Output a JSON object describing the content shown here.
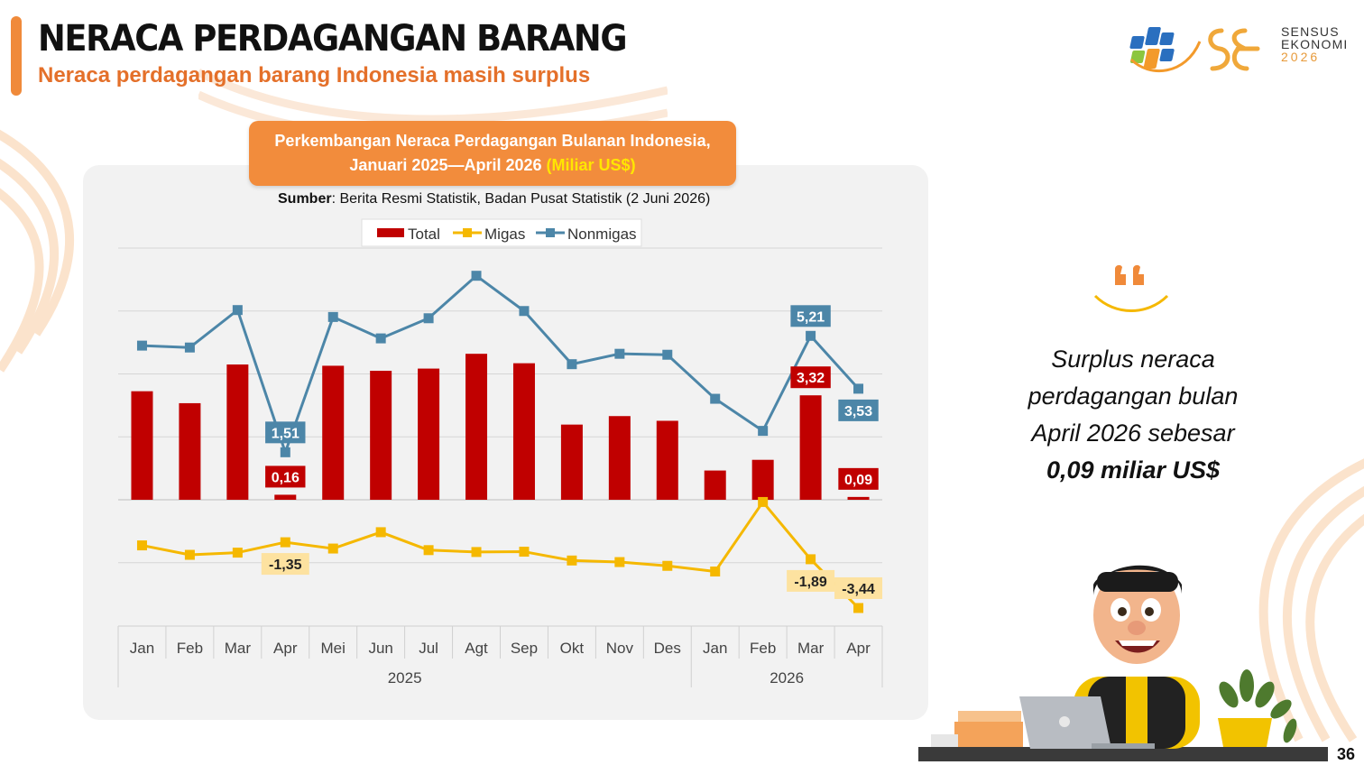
{
  "header": {
    "title": "NERACA PERDAGANGAN BARANG",
    "subtitle": "Neraca perdagangan barang Indonesia masih surplus"
  },
  "logo": {
    "line1": "SENSUS",
    "line2": "EKONOMI",
    "line3": "2026"
  },
  "chart_title": {
    "line1": "Perkembangan Neraca Perdagangan Bulanan Indonesia,",
    "line2": "Januari 2025—April 2026",
    "unit": "(Miliar US$)"
  },
  "source": {
    "label": "Sumber",
    "text": ": Berita Resmi Statistik, Badan Pusat Statistik (2 Juni 2026)"
  },
  "chart_data": {
    "type": "bar",
    "categories": [
      "Jan",
      "Feb",
      "Mar",
      "Apr",
      "Mei",
      "Jun",
      "Jul",
      "Agt",
      "Sep",
      "Okt",
      "Nov",
      "Des",
      "Jan",
      "Feb",
      "Mar",
      "Apr"
    ],
    "year_groups": [
      {
        "label": "2025",
        "count": 12
      },
      {
        "label": "2026",
        "count": 4
      }
    ],
    "legend": [
      "Total",
      "Migas",
      "Nonmigas"
    ],
    "series": [
      {
        "name": "Total",
        "type": "bar",
        "color": "#c00000",
        "values": [
          3.45,
          3.07,
          4.3,
          0.16,
          4.26,
          4.1,
          4.17,
          4.64,
          4.34,
          2.39,
          2.66,
          2.51,
          0.93,
          1.27,
          3.32,
          0.09
        ],
        "labels": {
          "3": "0,16",
          "14": "3,32",
          "15": "0,09"
        }
      },
      {
        "name": "Migas",
        "type": "line",
        "color": "#f5b800",
        "values": [
          -1.45,
          -1.75,
          -1.68,
          -1.35,
          -1.55,
          -1.03,
          -1.6,
          -1.66,
          -1.65,
          -1.93,
          -1.98,
          -2.1,
          -2.28,
          -0.07,
          -1.89,
          -3.44
        ],
        "labels": {
          "3": "-1,35",
          "14": "-1,89",
          "15": "-3,44"
        }
      },
      {
        "name": "Nonmigas",
        "type": "line",
        "color": "#4c86a8",
        "values": [
          4.9,
          4.84,
          6.03,
          1.51,
          5.81,
          5.13,
          5.77,
          7.12,
          6.0,
          4.31,
          4.64,
          4.61,
          3.21,
          2.19,
          5.21,
          3.53
        ],
        "labels": {
          "3": "1,51",
          "14": "5,21",
          "15": "3,53"
        }
      }
    ],
    "ylim": [
      -4,
      8
    ],
    "grid": true,
    "legend_position": "top"
  },
  "quote": {
    "line1": "Surplus neraca",
    "line2": "perdagangan bulan",
    "line3": "April 2026 sebesar",
    "highlight": "0,09 miliar US$"
  },
  "page_number": "36"
}
